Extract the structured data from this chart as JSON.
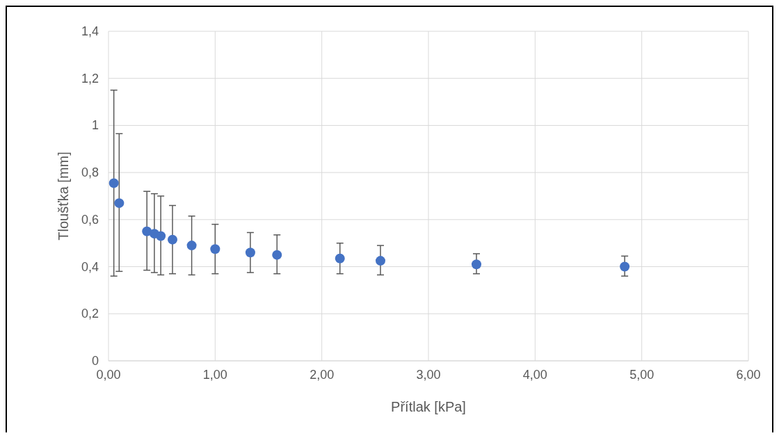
{
  "chart_data": {
    "type": "scatter",
    "xlabel": "Přítlak [kPa]",
    "ylabel": "Tloušťka [mm]",
    "xlim": [
      0,
      6
    ],
    "ylim": [
      0,
      1.4
    ],
    "xticks": [
      {
        "value": 0,
        "label": "0,00"
      },
      {
        "value": 1,
        "label": "1,00"
      },
      {
        "value": 2,
        "label": "2,00"
      },
      {
        "value": 3,
        "label": "3,00"
      },
      {
        "value": 4,
        "label": "4,00"
      },
      {
        "value": 5,
        "label": "5,00"
      },
      {
        "value": 6,
        "label": "6,00"
      }
    ],
    "yticks": [
      0,
      {
        "value": 0.2,
        "label": "0,2"
      },
      {
        "value": 0.4,
        "label": "0,4"
      },
      {
        "value": 0.6,
        "label": "0,6"
      },
      {
        "value": 0.8,
        "label": "0,8"
      },
      1,
      {
        "value": 1.2,
        "label": "1,2"
      },
      {
        "value": 1.4,
        "label": "1,4"
      }
    ],
    "grid": true,
    "marker": "circle",
    "series": [
      {
        "color": "#4472c4",
        "x": [
          0.05,
          0.1,
          0.36,
          0.43,
          0.49,
          0.6,
          0.78,
          1.0,
          1.33,
          1.58,
          2.17,
          2.55,
          3.45,
          4.84
        ],
        "values": [
          0.755,
          0.67,
          0.55,
          0.54,
          0.53,
          0.515,
          0.49,
          0.475,
          0.46,
          0.45,
          0.435,
          0.425,
          0.41,
          0.4
        ],
        "errors": [
          [
            0.36,
            1.15
          ],
          [
            0.38,
            0.965
          ],
          [
            0.385,
            0.72
          ],
          [
            0.375,
            0.71
          ],
          [
            0.365,
            0.7
          ],
          [
            0.37,
            0.66
          ],
          [
            0.365,
            0.615
          ],
          [
            0.37,
            0.58
          ],
          [
            0.375,
            0.545
          ],
          [
            0.37,
            0.535
          ],
          [
            0.37,
            0.5
          ],
          [
            0.365,
            0.49
          ],
          [
            0.37,
            0.455
          ],
          [
            0.36,
            0.445
          ]
        ]
      }
    ]
  }
}
